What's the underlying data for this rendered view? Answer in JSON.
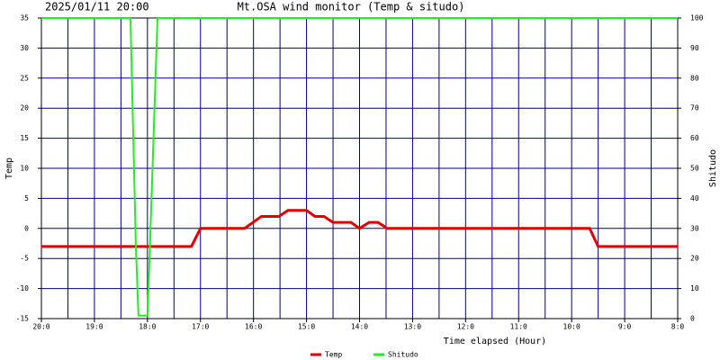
{
  "chart_data": {
    "type": "line",
    "date": "2025/01/11 20:00",
    "title": "Mt.OSA wind monitor (Temp & situdo)",
    "xlabel": "Time elapsed (Hour)",
    "ylabel": "Temp",
    "y2label": "Shitudo",
    "xlim": [
      0,
      12
    ],
    "xticks": [
      {
        "value": 0,
        "label": "20:0"
      },
      {
        "value": 1,
        "label": "19:0"
      },
      {
        "value": 2,
        "label": "18:0"
      },
      {
        "value": 3,
        "label": "17:0"
      },
      {
        "value": 4,
        "label": "16:0"
      },
      {
        "value": 5,
        "label": "15:0"
      },
      {
        "value": 6,
        "label": "14:0"
      },
      {
        "value": 7,
        "label": "13:0"
      },
      {
        "value": 8,
        "label": "12:0"
      },
      {
        "value": 9,
        "label": "11:0"
      },
      {
        "value": 10,
        "label": "10:0"
      },
      {
        "value": 11,
        "label": "9:0"
      },
      {
        "value": 12,
        "label": "8:0"
      }
    ],
    "xminorticks": [
      0.5,
      1.5,
      2.5,
      3.5,
      4.5,
      5.5,
      6.5,
      7.5,
      8.5,
      9.5,
      10.5,
      11.5
    ],
    "ylim": [
      -15,
      35
    ],
    "yticks": [
      -15,
      -10,
      -5,
      0,
      5,
      10,
      15,
      20,
      25,
      30,
      35
    ],
    "y2lim": [
      0,
      100
    ],
    "y2ticks": [
      0,
      10,
      20,
      30,
      40,
      50,
      60,
      70,
      80,
      90,
      100
    ],
    "grid": true,
    "series": [
      {
        "name": "Temp",
        "color": "#e00000",
        "axis": "y",
        "x": [
          0,
          2.83,
          3.0,
          3.83,
          4.15,
          4.48,
          4.65,
          5.0,
          5.16,
          5.33,
          5.5,
          5.84,
          6.0,
          6.18,
          6.35,
          6.52,
          10.34,
          10.5,
          12
        ],
        "values": [
          -3,
          -3,
          0,
          0,
          2,
          2,
          3,
          3,
          2,
          2,
          1,
          1,
          0,
          1,
          1,
          0,
          0,
          -3,
          -3
        ]
      },
      {
        "name": "Shitudo",
        "color": "#22ee22",
        "axis": "y2",
        "x": [
          0,
          1.68,
          1.78,
          1.83,
          2.0,
          2.02,
          2.19,
          12
        ],
        "values": [
          100,
          100,
          25,
          1,
          1,
          10,
          100,
          100
        ]
      }
    ]
  }
}
